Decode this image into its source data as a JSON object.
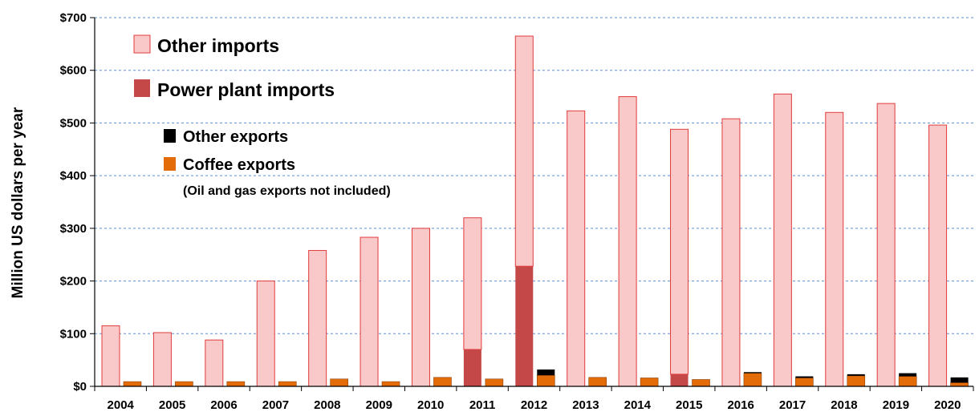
{
  "chart_data": {
    "type": "bar",
    "ylabel": "Million US dollars per year",
    "ylim": [
      0,
      700
    ],
    "yticks": [
      "$0",
      "$100",
      "$200",
      "$300",
      "$400",
      "$500",
      "$600",
      "$700"
    ],
    "grid": true,
    "categories": [
      "2004",
      "2005",
      "2006",
      "2007",
      "2008",
      "2009",
      "2010",
      "2011",
      "2012",
      "2013",
      "2014",
      "2015",
      "2016",
      "2017",
      "2018",
      "2019",
      "2020"
    ],
    "imports": {
      "power_plant_imports": [
        0,
        0,
        0,
        0,
        0,
        0,
        0,
        70,
        228,
        0,
        0,
        23,
        0,
        0,
        0,
        0,
        0
      ],
      "other_imports": [
        115,
        102,
        88,
        200,
        258,
        283,
        300,
        250,
        437,
        523,
        550,
        465,
        508,
        555,
        520,
        537,
        496
      ]
    },
    "exports": {
      "coffee_exports": [
        9,
        9,
        9,
        9,
        14,
        9,
        17,
        14,
        21,
        17,
        16,
        13,
        25,
        16,
        20,
        19,
        7
      ],
      "other_exports": [
        0,
        0,
        0,
        0,
        0,
        0,
        0,
        0,
        11,
        0,
        0,
        0,
        2,
        3,
        3,
        6,
        10
      ]
    },
    "legend": {
      "other_imports": "Other imports",
      "power_plant_imports": "Power plant imports",
      "other_exports": "Other exports",
      "coffee_exports": "Coffee exports",
      "note": "(Oil and gas exports not included)"
    },
    "colors": {
      "other_imports_fill": "#f9c8c8",
      "other_imports_stroke": "#e03c3c",
      "power_plant_imports": "#c54848",
      "coffee_exports": "#e36c09",
      "other_exports": "#000000",
      "grid": "#5b8fd6"
    }
  }
}
